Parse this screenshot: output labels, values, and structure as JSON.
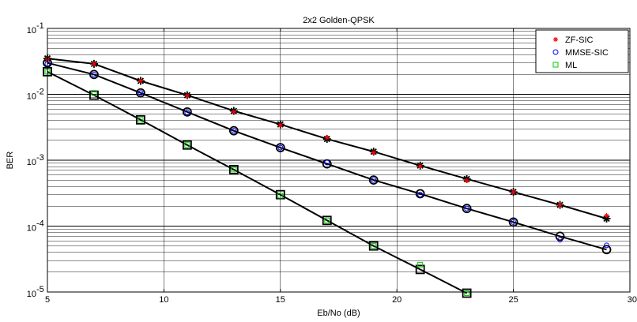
{
  "chart_data": {
    "type": "scatter",
    "title": "2x2 Golden-QPSK",
    "xlabel": "Eb/No (dB)",
    "ylabel": "BER",
    "xlim": [
      5,
      30
    ],
    "ylim": [
      1e-05,
      0.1
    ],
    "y_scale": "log",
    "grid": true,
    "legend_position": "top-right",
    "x_ticks": [
      "5",
      "10",
      "15",
      "20",
      "25",
      "30"
    ],
    "y_ticks": [
      {
        "base": "10",
        "exp": "-1",
        "value": 0.1
      },
      {
        "base": "10",
        "exp": "-2",
        "value": 0.01
      },
      {
        "base": "10",
        "exp": "-3",
        "value": 0.001
      },
      {
        "base": "10",
        "exp": "-4",
        "value": 0.0001
      },
      {
        "base": "10",
        "exp": "-5",
        "value": 1e-05
      }
    ],
    "series": [
      {
        "name": "ZF-SIC",
        "color": "#ff0000",
        "marker": "asterisk",
        "x": [
          5,
          7,
          9,
          11,
          13,
          15,
          17,
          19,
          21,
          23,
          25,
          27,
          29
        ],
        "y": [
          0.034,
          0.029,
          0.016,
          0.0095,
          0.0054,
          0.0034,
          0.0022,
          0.0013,
          0.00081,
          0.00049,
          0.00033,
          0.00021,
          0.000145
        ]
      },
      {
        "name": "MMSE-SIC",
        "color": "#0000ff",
        "marker": "circle",
        "x": [
          5,
          7,
          9,
          11,
          13,
          15,
          17,
          19,
          21,
          23,
          25,
          27,
          29
        ],
        "y": [
          0.029,
          0.02,
          0.0105,
          0.0053,
          0.0028,
          0.00155,
          0.00092,
          0.0005,
          0.0003,
          0.000185,
          0.000115,
          6.2e-05,
          5.1e-05
        ]
      },
      {
        "name": "ML",
        "color": "#00cc00",
        "marker": "square",
        "x": [
          5,
          7,
          9,
          11,
          13,
          15,
          17,
          19,
          21,
          23
        ],
        "y": [
          0.022,
          0.0105,
          0.0041,
          0.0017,
          0.00072,
          0.00029,
          0.000122,
          5e-05,
          2.6e-05,
          9.6e-06
        ]
      }
    ],
    "fit_curves": [
      {
        "marker": "asterisk",
        "color": "#000000",
        "x": [
          5,
          7,
          9,
          11,
          13,
          15,
          17,
          19,
          21,
          23,
          25,
          27,
          29
        ],
        "y": [
          0.035,
          0.029,
          0.016,
          0.0097,
          0.0056,
          0.0035,
          0.0021,
          0.00135,
          0.00083,
          0.00052,
          0.00033,
          0.00021,
          0.00013
        ]
      },
      {
        "marker": "circle",
        "color": "#000000",
        "x": [
          5,
          7,
          9,
          11,
          13,
          15,
          17,
          19,
          21,
          23,
          25,
          27,
          29
        ],
        "y": [
          0.03,
          0.02,
          0.0105,
          0.0054,
          0.0028,
          0.00155,
          0.00088,
          0.0005,
          0.00031,
          0.000185,
          0.000115,
          7e-05,
          4.4e-05
        ]
      },
      {
        "marker": "square",
        "color": "#000000",
        "x": [
          5,
          7,
          9,
          11,
          13,
          15,
          17,
          19,
          21,
          23
        ],
        "y": [
          0.022,
          0.0097,
          0.0041,
          0.0017,
          0.00072,
          0.0003,
          0.000122,
          5e-05,
          2.2e-05,
          9.6e-06
        ]
      }
    ]
  }
}
